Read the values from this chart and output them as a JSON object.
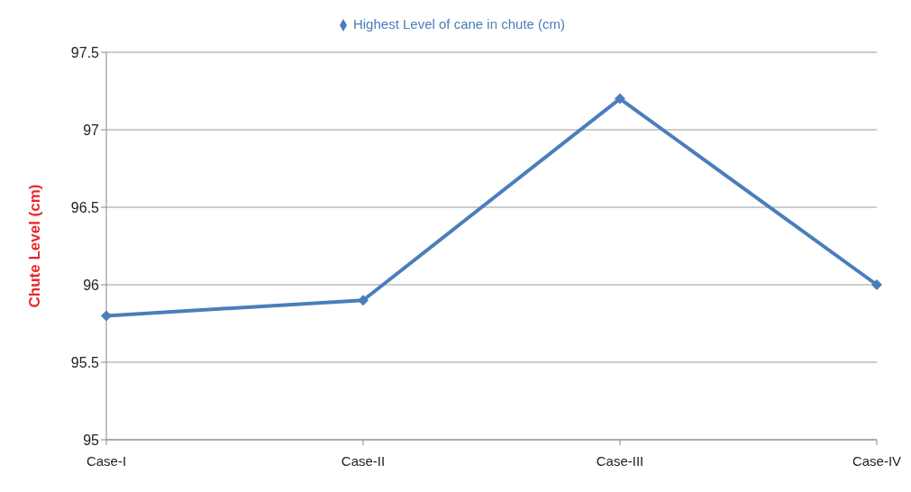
{
  "chart_data": {
    "type": "line",
    "ylabel": "Chute Level (cm)",
    "categories": [
      "Case-I",
      "Case-II",
      "Case-III",
      "Case-IV"
    ],
    "series": [
      {
        "name": "Highest Level of cane in chute (cm)",
        "color": "#4a7ebb",
        "values": [
          95.8,
          95.9,
          97.2,
          96.0
        ]
      }
    ],
    "ylim": [
      95,
      97.5
    ],
    "yticks": [
      95,
      {
        "value": 95.5,
        "label": "95.5"
      },
      {
        "value": 96,
        "label": "96"
      },
      {
        "value": 96.5,
        "label": "96.5"
      },
      {
        "value": 97,
        "label": "97"
      },
      {
        "value": 97.5,
        "label": "97.5"
      }
    ],
    "grid": "y",
    "legend": "top",
    "marker": "diamond",
    "line_style": "solid"
  }
}
